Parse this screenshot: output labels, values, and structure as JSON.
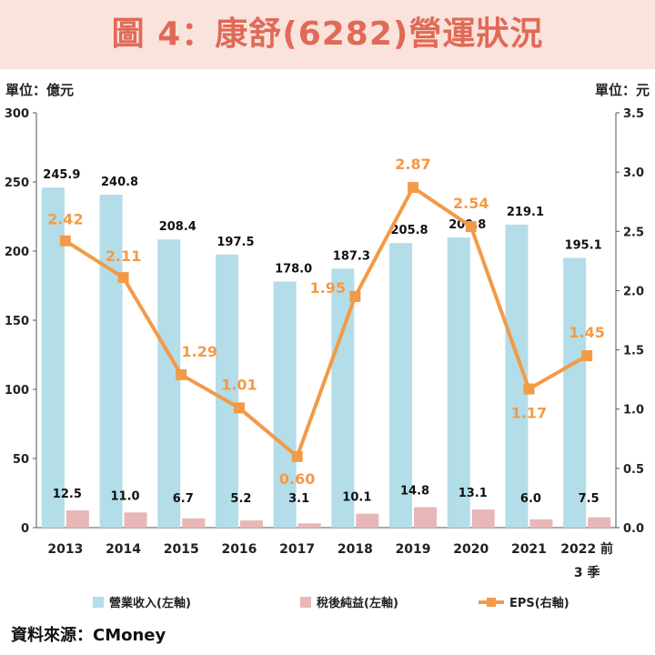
{
  "title": "圖 4：康舒(6282)營運狀況",
  "left_unit": "單位：億元",
  "right_unit": "單位：元",
  "source": "資料來源：CMoney",
  "colors": {
    "revenue": "#b3dde8",
    "net_income": "#e8b7b7",
    "eps": "#f39a47",
    "title_bg": "#f9e3dc",
    "title_text": "#e06a57"
  },
  "chart_data": {
    "type": "bar",
    "categories": [
      "2013",
      "2014",
      "2015",
      "2016",
      "2017",
      "2018",
      "2019",
      "2020",
      "2021",
      "2022 前\n3 季"
    ],
    "series": [
      {
        "name": "營業收入(左軸)",
        "type": "bar",
        "axis": "left",
        "values": [
          245.9,
          240.8,
          208.4,
          197.5,
          178.0,
          187.3,
          205.8,
          209.8,
          219.1,
          195.1
        ],
        "labels": [
          "245.9",
          "240.8",
          "208.4",
          "197.5",
          "178.0",
          "187.3",
          "205.8",
          "209.8",
          "219.1",
          "195.1"
        ]
      },
      {
        "name": "稅後純益(左軸)",
        "type": "bar",
        "axis": "left",
        "values": [
          12.5,
          11.0,
          6.7,
          5.2,
          3.1,
          10.1,
          14.8,
          13.1,
          6.0,
          7.5
        ],
        "labels": [
          "12.5",
          "11.0",
          "6.7",
          "5.2",
          "3.1",
          "10.1",
          "14.8",
          "13.1",
          "6.0",
          "7.5"
        ]
      },
      {
        "name": "EPS(右軸)",
        "type": "line",
        "axis": "right",
        "values": [
          2.42,
          2.11,
          1.29,
          1.01,
          0.6,
          1.95,
          2.87,
          2.54,
          1.17,
          1.45
        ],
        "labels": [
          "2.42",
          "2.11",
          "1.29",
          "1.01",
          "0.60",
          "1.95",
          "2.87",
          "2.54",
          "1.17",
          "1.45"
        ]
      }
    ],
    "left_axis": {
      "min": 0,
      "max": 300,
      "ticks": [
        "0",
        "50",
        "100",
        "150",
        "200",
        "250",
        "300"
      ]
    },
    "right_axis": {
      "min": 0,
      "max": 3.5,
      "ticks": [
        "0.0",
        "0.5",
        "1.0",
        "1.5",
        "2.0",
        "2.5",
        "3.0",
        "3.5"
      ]
    },
    "legend_position": "bottom",
    "grid": false
  }
}
